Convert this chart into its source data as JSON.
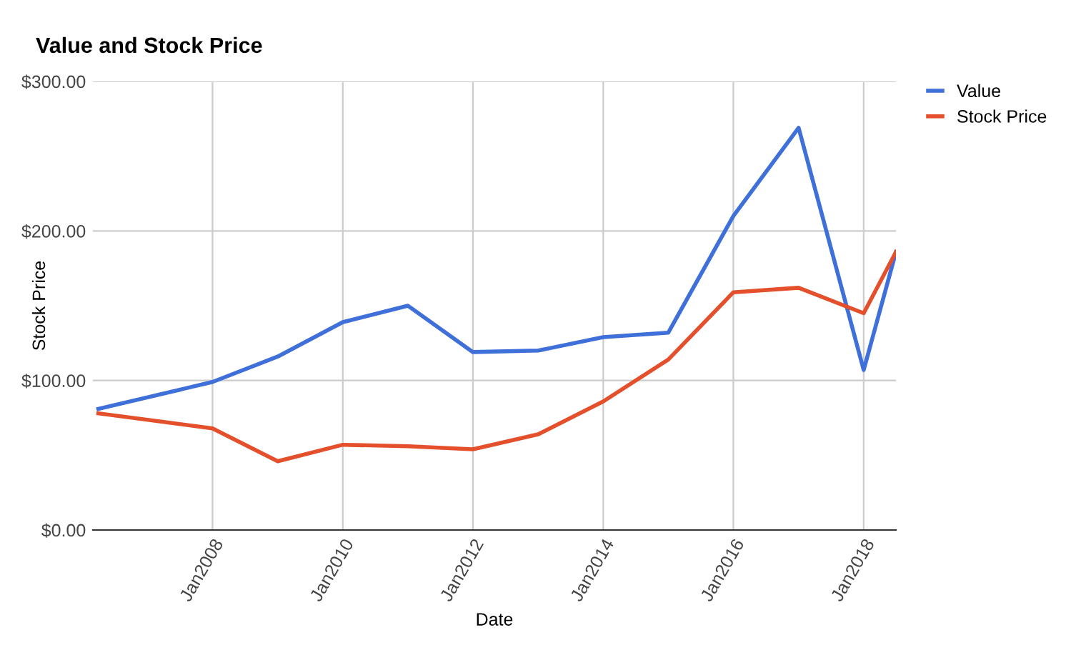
{
  "chart_data": {
    "type": "line",
    "title": "Value and Stock Price",
    "xlabel": "Date",
    "ylabel": "Stock Price",
    "x": [
      "2006-04",
      "2008-01",
      "2009-01",
      "2010-01",
      "2011-01",
      "2012-01",
      "2013-01",
      "2014-01",
      "2015-01",
      "2016-01",
      "2017-01",
      "2018-01",
      "2018-07"
    ],
    "series": [
      {
        "name": "Value",
        "color": "#3f6fd8",
        "values": [
          81,
          99,
          116,
          139,
          150,
          119,
          120,
          129,
          132,
          210,
          269,
          107,
          186
        ]
      },
      {
        "name": "Stock Price",
        "color": "#e4502b",
        "values": [
          78,
          68,
          46,
          57,
          56,
          54,
          64,
          86,
          114,
          159,
          162,
          145,
          186
        ]
      }
    ],
    "xlim": [
      "2006-03",
      "2018-07"
    ],
    "xticks": [
      {
        "value": "2008-01",
        "label": "Jan2008"
      },
      {
        "value": "2010-01",
        "label": "Jan2010"
      },
      {
        "value": "2012-01",
        "label": "Jan2012"
      },
      {
        "value": "2014-01",
        "label": "Jan2014"
      },
      {
        "value": "2016-01",
        "label": "Jan2016"
      },
      {
        "value": "2018-01",
        "label": "Jan2018"
      }
    ],
    "ylim": [
      0,
      300
    ],
    "yticks": [
      {
        "value": 0,
        "label": "$0.00"
      },
      {
        "value": 100,
        "label": "$100.00"
      },
      {
        "value": 200,
        "label": "$200.00"
      },
      {
        "value": 300,
        "label": "$300.00"
      }
    ],
    "grid": true,
    "legend": "top right",
    "marker": "none",
    "line_style": "solid"
  }
}
